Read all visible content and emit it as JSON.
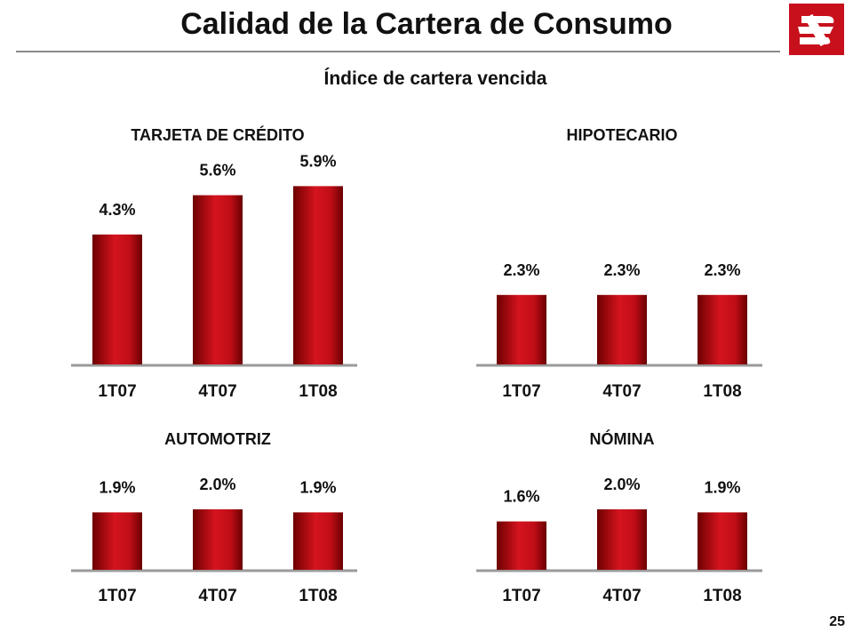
{
  "title": "Calidad de la Cartera de Consumo",
  "subtitle": "Índice de cartera vencida",
  "page_number": "25",
  "colors": {
    "bar": "#c4101a",
    "bar_dark": "#6e0000",
    "baseline": "#9a9a9a",
    "logo": "#c8101d"
  },
  "logo_icon": "banorte-logo-icon",
  "chart_data": [
    {
      "type": "bar",
      "title": "TARJETA DE CRÉDITO",
      "categories": [
        "1T07",
        "4T07",
        "1T08"
      ],
      "values": [
        4.3,
        5.6,
        5.9
      ],
      "labels": [
        "4.3%",
        "5.6%",
        "5.9%"
      ],
      "unit": "%"
    },
    {
      "type": "bar",
      "title": "HIPOTECARIO",
      "categories": [
        "1T07",
        "4T07",
        "1T08"
      ],
      "values": [
        2.3,
        2.3,
        2.3
      ],
      "labels": [
        "2.3%",
        "2.3%",
        "2.3%"
      ],
      "unit": "%"
    },
    {
      "type": "bar",
      "title": "AUTOMOTRIZ",
      "categories": [
        "1T07",
        "4T07",
        "1T08"
      ],
      "values": [
        1.9,
        2.0,
        1.9
      ],
      "labels": [
        "1.9%",
        "2.0%",
        "1.9%"
      ],
      "unit": "%"
    },
    {
      "type": "bar",
      "title": "NÓMINA",
      "categories": [
        "1T07",
        "4T07",
        "1T08"
      ],
      "values": [
        1.6,
        2.0,
        1.9
      ],
      "labels": [
        "1.6%",
        "2.0%",
        "1.9%"
      ],
      "unit": "%"
    }
  ]
}
